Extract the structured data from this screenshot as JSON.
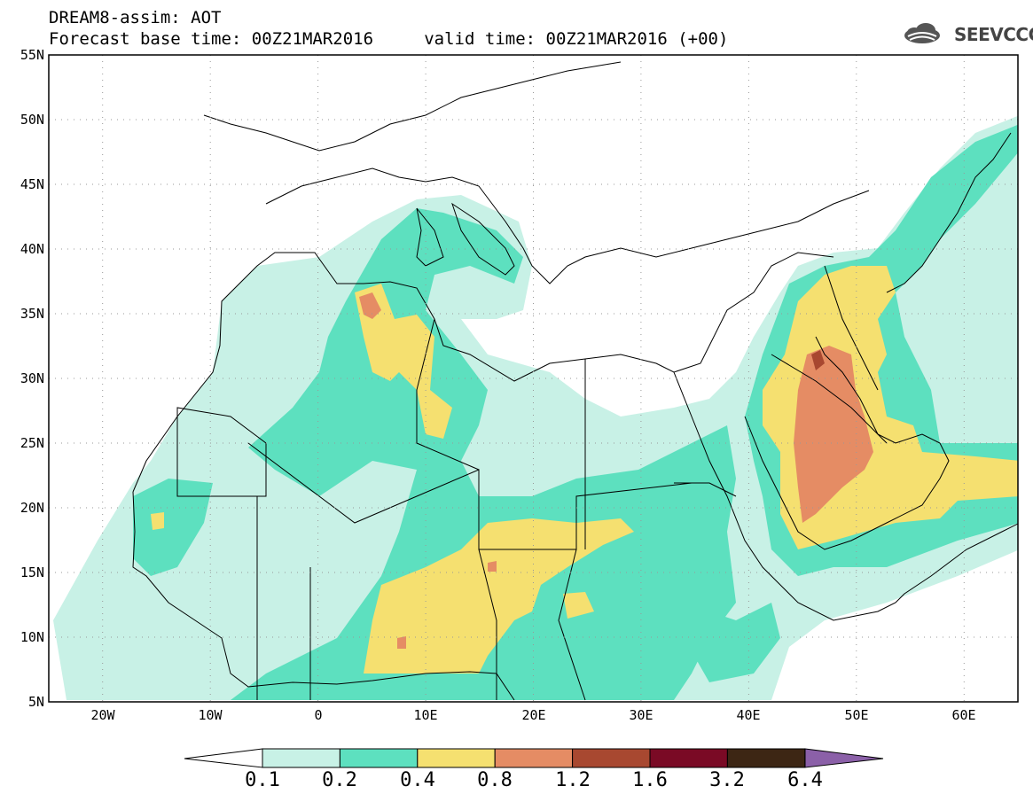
{
  "title": {
    "line1": "DREAM8-assim: AOT",
    "line2": "Forecast base time: 00Z21MAR2016     valid time: 00Z21MAR2016 (+00)"
  },
  "logo": {
    "text": "SEEVCCC"
  },
  "map": {
    "lon_range": [
      -25,
      65
    ],
    "lat_range": [
      5,
      55
    ],
    "lat_labels": [
      "55N",
      "50N",
      "45N",
      "40N",
      "35N",
      "30N",
      "25N",
      "20N",
      "15N",
      "10N",
      "5N"
    ],
    "lon_labels": [
      "20W",
      "10W",
      "0",
      "10E",
      "20E",
      "30E",
      "40E",
      "50E",
      "60E"
    ]
  },
  "colorbar": {
    "levels": [
      "0.1",
      "0.2",
      "0.4",
      "0.8",
      "1.2",
      "1.6",
      "3.2",
      "6.4"
    ],
    "colors": [
      "#ffffff",
      "#c8f1e6",
      "#5de0bf",
      "#f5e070",
      "#e58c64",
      "#a84830",
      "#7a0a25",
      "#3d2614",
      "#8b60a8"
    ]
  }
}
